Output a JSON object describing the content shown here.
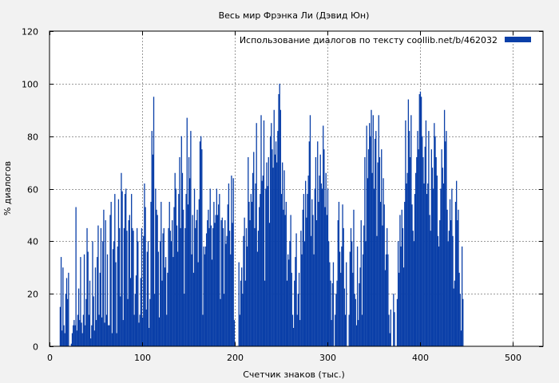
{
  "chart_data": {
    "type": "bar",
    "title": "Весь мир Фрэнка Ли (Дэвид Юн)",
    "xlabel": "Счетчик знаков (тыс.)",
    "ylabel": "% диалогов",
    "xlim": [
      0,
      533
    ],
    "ylim": [
      0,
      120
    ],
    "x_ticks": [
      0,
      100,
      200,
      300,
      400,
      500
    ],
    "y_ticks": [
      0,
      20,
      40,
      60,
      80,
      100,
      120
    ],
    "grid": true,
    "legend_position": "top-right",
    "series": [
      {
        "name": "Использование диалогов по тексту  coollib.net/b/462032",
        "color": "#0a3fa8",
        "x_start": 10,
        "x_step": 1,
        "values": [
          0,
          15,
          34,
          6,
          30,
          8,
          5,
          20,
          26,
          18,
          28,
          0,
          0,
          1,
          5,
          8,
          10,
          8,
          53,
          6,
          12,
          22,
          10,
          34,
          9,
          5,
          12,
          35,
          8,
          18,
          45,
          36,
          12,
          25,
          3,
          8,
          40,
          19,
          6,
          30,
          10,
          34,
          46,
          12,
          28,
          45,
          11,
          40,
          52,
          9,
          48,
          12,
          35,
          8,
          8,
          50,
          55,
          5,
          37,
          40,
          58,
          32,
          5,
          38,
          56,
          45,
          19,
          66,
          59,
          10,
          45,
          58,
          60,
          44,
          18,
          48,
          50,
          26,
          58,
          45,
          44,
          12,
          20,
          27,
          45,
          40,
          9,
          12,
          26,
          45,
          11,
          42,
          62,
          53,
          14,
          36,
          40,
          7,
          18,
          55,
          82,
          73,
          95,
          20,
          60,
          52,
          50,
          36,
          11,
          40,
          55,
          25,
          43,
          45,
          30,
          34,
          12,
          28,
          45,
          55,
          44,
          40,
          48,
          34,
          53,
          66,
          60,
          46,
          36,
          58,
          72,
          45,
          80,
          66,
          52,
          20,
          45,
          58,
          87,
          54,
          72,
          64,
          82,
          35,
          50,
          28,
          60,
          45,
          48,
          52,
          32,
          56,
          78,
          80,
          75,
          12,
          38,
          35,
          38,
          43,
          48,
          52,
          45,
          60,
          46,
          33,
          45,
          55,
          47,
          50,
          60,
          50,
          54,
          58,
          18,
          48,
          49,
          45,
          20,
          48,
          39,
          42,
          54,
          62,
          44,
          35,
          65,
          47,
          64,
          10,
          0,
          0,
          0,
          0,
          32,
          12,
          25,
          30,
          20,
          42,
          49,
          25,
          45,
          38,
          72,
          55,
          48,
          58,
          55,
          66,
          74,
          45,
          62,
          85,
          36,
          44,
          53,
          58,
          88,
          63,
          65,
          86,
          25,
          60,
          70,
          61,
          72,
          47,
          80,
          85,
          75,
          68,
          90,
          73,
          78,
          70,
          82,
          96,
          100,
          90,
          58,
          70,
          52,
          67,
          50,
          55,
          25,
          35,
          33,
          40,
          50,
          28,
          12,
          7,
          25,
          34,
          43,
          12,
          20,
          28,
          10,
          44,
          35,
          52,
          58,
          40,
          63,
          49,
          58,
          65,
          78,
          88,
          42,
          56,
          50,
          35,
          60,
          72,
          48,
          78,
          55,
          65,
          73,
          62,
          60,
          84,
          75,
          53,
          66,
          50,
          60,
          40,
          32,
          25,
          10,
          24,
          32,
          0,
          12,
          20,
          25,
          48,
          55,
          36,
          28,
          38,
          54,
          45,
          22,
          12,
          32,
          0,
          0,
          12,
          36,
          45,
          40,
          28,
          52,
          20,
          18,
          8,
          38,
          10,
          24,
          30,
          48,
          12,
          35,
          46,
          72,
          40,
          84,
          64,
          75,
          85,
          80,
          90,
          66,
          88,
          60,
          79,
          82,
          42,
          70,
          88,
          72,
          55,
          75,
          46,
          64,
          54,
          29,
          35,
          45,
          35,
          12,
          5,
          14,
          0,
          0,
          20,
          13,
          0,
          0,
          18,
          40,
          28,
          50,
          38,
          52,
          45,
          30,
          55,
          86,
          62,
          66,
          94,
          82,
          72,
          88,
          54,
          44,
          40,
          58,
          66,
          72,
          82,
          75,
          96,
          97,
          95,
          80,
          72,
          62,
          76,
          86,
          58,
          62,
          82,
          50,
          44,
          75,
          68,
          60,
          85,
          80,
          72,
          65,
          42,
          38,
          48,
          60,
          75,
          68,
          62,
          90,
          78,
          82,
          52,
          40,
          44,
          56,
          48,
          60,
          42,
          22,
          25,
          55,
          63,
          48,
          52,
          28,
          20,
          6,
          38,
          18
        ]
      }
    ]
  }
}
